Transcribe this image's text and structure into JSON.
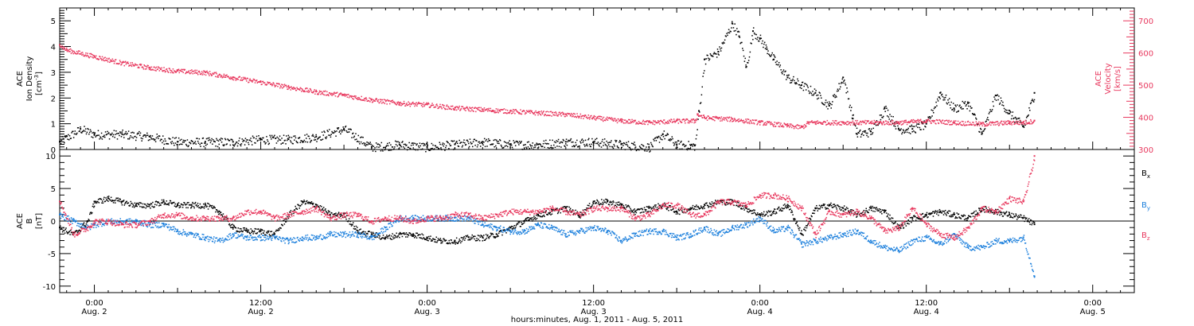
{
  "colors": {
    "black": "#000000",
    "red": "#e8385e",
    "blue": "#1b7fdc"
  },
  "xaxis": {
    "title": "hours:minutes, Aug.  1, 2011 - Aug.  5, 2011",
    "ticks": [
      {
        "time": "0:00",
        "date": "Aug. 2",
        "hours": 24
      },
      {
        "time": "12:00",
        "date": "Aug. 2",
        "hours": 36
      },
      {
        "time": "0:00",
        "date": "Aug. 3",
        "hours": 48
      },
      {
        "time": "12:00",
        "date": "Aug. 3",
        "hours": 60
      },
      {
        "time": "0:00",
        "date": "Aug. 4",
        "hours": 72
      },
      {
        "time": "12:00",
        "date": "Aug. 4",
        "hours": 84
      },
      {
        "time": "0:00",
        "date": "Aug. 5",
        "hours": 96
      }
    ],
    "range_hours": [
      21.5,
      99
    ]
  },
  "panel_top": {
    "left_label_line1": "ACE",
    "left_label_line2": "Ion Density",
    "left_label_line3": "[cm",
    "left_label_sup": "-3",
    "left_label_close": "]",
    "right_label_line1": "ACE",
    "right_label_line2": "Velocity",
    "right_label_line3": "[km/s]",
    "left_ticks": [
      "0",
      "1",
      "2",
      "3",
      "4",
      "5"
    ],
    "right_ticks": [
      "300",
      "400",
      "500",
      "600",
      "700"
    ]
  },
  "panel_bottom": {
    "left_label_line1": "ACE",
    "left_label_line2": "B",
    "left_label_line3": "[nT]",
    "left_ticks": [
      "-10",
      "-5",
      "0",
      "5",
      "10"
    ],
    "legend": [
      {
        "base": "B",
        "sub": "x",
        "color": "#000000"
      },
      {
        "base": "B",
        "sub": "y",
        "color": "#1b7fdc"
      },
      {
        "base": "B",
        "sub": "z",
        "color": "#e8385e"
      }
    ]
  },
  "chart_data": [
    {
      "type": "scatter",
      "x_units": "hours since Aug. 1, 2011 00:00",
      "xlim": [
        21.5,
        99
      ],
      "ylim_left": [
        0,
        5.5
      ],
      "ylim_right": [
        300,
        740
      ],
      "series": [
        {
          "axis": "left",
          "color": "#000000",
          "x": [
            21.5,
            23,
            24,
            26,
            28,
            30,
            32,
            34,
            36,
            38,
            40,
            42,
            44,
            46,
            48,
            50,
            52,
            54,
            56,
            58,
            60,
            62,
            64,
            65,
            66,
            67.3,
            67.6,
            68,
            69,
            70,
            70.5,
            71,
            71.5,
            72,
            72.5,
            73,
            74,
            75,
            76,
            77,
            78,
            78.7,
            79,
            80,
            81,
            82,
            83,
            84,
            85,
            86,
            87,
            88,
            89,
            90,
            91,
            91.8
          ],
          "y": [
            0.3,
            0.8,
            0.6,
            0.6,
            0.5,
            0.3,
            0.3,
            0.3,
            0.4,
            0.4,
            0.5,
            0.8,
            0.1,
            0.2,
            0.1,
            0.2,
            0.3,
            0.2,
            0.2,
            0.3,
            0.3,
            0.2,
            0.1,
            0.6,
            0.2,
            0.15,
            1.5,
            3.5,
            3.8,
            4.9,
            4.4,
            3.2,
            4.6,
            4.3,
            3.9,
            3.5,
            2.8,
            2.5,
            2.2,
            1.7,
            2.8,
            1.2,
            0.6,
            0.7,
            1.6,
            0.8,
            0.8,
            1.0,
            2.2,
            1.6,
            1.8,
            0.6,
            2.1,
            1.4,
            0.9,
            2.2
          ]
        },
        {
          "axis": "right",
          "color": "#e8385e",
          "x": [
            21.5,
            22,
            24,
            26,
            28,
            30,
            32,
            34,
            36,
            38,
            40,
            42,
            44,
            46,
            48,
            50,
            52,
            54,
            56,
            58,
            60,
            62,
            64,
            66,
            67.3,
            67.5,
            68,
            70,
            72,
            74,
            75,
            75.5,
            76,
            78,
            80,
            82,
            84,
            86,
            88,
            90,
            91,
            91.8
          ],
          "y": [
            625,
            610,
            590,
            570,
            555,
            545,
            540,
            525,
            510,
            495,
            480,
            470,
            455,
            445,
            440,
            430,
            425,
            420,
            415,
            410,
            400,
            390,
            385,
            390,
            390,
            410,
            400,
            395,
            385,
            375,
            370,
            385,
            385,
            385,
            385,
            385,
            390,
            385,
            380,
            385,
            385,
            390
          ]
        }
      ]
    },
    {
      "type": "scatter",
      "x_units": "hours since Aug. 1, 2011 00:00",
      "xlim": [
        21.5,
        99
      ],
      "ylim": [
        -11,
        11
      ],
      "series": [
        {
          "name": "Bx",
          "color": "#000000",
          "x": [
            21.5,
            22.5,
            23.5,
            24,
            25,
            26,
            27,
            28,
            29,
            30,
            31,
            32,
            33,
            34,
            35,
            36,
            37,
            38,
            39,
            40,
            41,
            42,
            43,
            44,
            45,
            46,
            47,
            48,
            49,
            50,
            51,
            52,
            53,
            54,
            55,
            56,
            57,
            58,
            59,
            60,
            61,
            62,
            63,
            64,
            65,
            66,
            67,
            68,
            69,
            70,
            71,
            72,
            73,
            74,
            75,
            76,
            77,
            78,
            79,
            80,
            81,
            82,
            83,
            84,
            85,
            86,
            87,
            88,
            89,
            90,
            91,
            91.8
          ],
          "y": [
            -1,
            -2,
            0,
            3,
            3.5,
            3,
            2.5,
            2.5,
            3,
            2.5,
            2.5,
            2.5,
            1.5,
            -1,
            -1.5,
            -1.5,
            -2,
            1,
            3,
            2.5,
            1,
            1,
            -1.5,
            -2,
            -2.5,
            -2,
            -2,
            -2.5,
            -3,
            -3,
            -2.5,
            -2.5,
            -2,
            -1,
            0,
            1,
            1.5,
            2,
            1,
            3,
            3,
            2.5,
            1.5,
            2,
            2.5,
            1.5,
            2,
            2.5,
            3,
            3,
            2,
            1,
            1.5,
            2.5,
            -2,
            2,
            2.5,
            2,
            1,
            2,
            1.5,
            -1,
            0.5,
            1,
            1.5,
            1,
            0.5,
            2,
            1.5,
            1,
            0.5,
            -0.5
          ]
        },
        {
          "name": "By",
          "color": "#1b7fdc",
          "x": [
            21.5,
            22.5,
            23.5,
            24,
            25,
            26,
            27,
            28,
            29,
            30,
            31,
            32,
            33,
            34,
            35,
            36,
            37,
            38,
            39,
            40,
            41,
            42,
            43,
            44,
            45,
            46,
            47,
            48,
            49,
            50,
            51,
            52,
            53,
            54,
            55,
            56,
            57,
            58,
            59,
            60,
            61,
            62,
            63,
            64,
            65,
            66,
            67,
            68,
            69,
            70,
            71,
            72,
            73,
            74,
            75,
            76,
            77,
            78,
            79,
            80,
            81,
            82,
            83,
            84,
            85,
            86,
            87,
            88,
            89,
            90,
            91,
            91.8
          ],
          "y": [
            1,
            0,
            -1,
            -0.5,
            0,
            0,
            0,
            -0.5,
            -0.5,
            -1.5,
            -2,
            -2.5,
            -3,
            -2,
            -2.5,
            -2.5,
            -2.5,
            -3,
            -2.5,
            -2.5,
            -2,
            -2,
            -2,
            -2.5,
            -1,
            0.5,
            0.5,
            0.5,
            0.5,
            0.5,
            0.5,
            -0.5,
            -1,
            -1.5,
            -1.5,
            -0.5,
            -1,
            -2,
            -1.5,
            -1,
            -1.5,
            -3,
            -2,
            -1.5,
            -1.5,
            -2.5,
            -2,
            -1,
            -2,
            -1,
            -0.5,
            0.5,
            -1.5,
            -1,
            -3.5,
            -3,
            -2.5,
            -2,
            -1.5,
            -3,
            -4,
            -4.5,
            -3,
            -2.5,
            -3.5,
            -2,
            -4,
            -4,
            -3,
            -3,
            -2.5,
            -8.5
          ]
        },
        {
          "name": "Bz",
          "color": "#e8385e",
          "x": [
            21.5,
            22.5,
            23.5,
            24,
            25,
            26,
            27,
            28,
            29,
            30,
            31,
            32,
            33,
            34,
            35,
            36,
            37,
            38,
            39,
            40,
            41,
            42,
            43,
            44,
            45,
            46,
            47,
            48,
            49,
            50,
            51,
            52,
            53,
            54,
            55,
            56,
            57,
            58,
            59,
            60,
            61,
            62,
            63,
            64,
            65,
            66,
            67,
            68,
            69,
            70,
            71,
            72,
            73,
            74,
            75,
            76,
            77,
            78,
            79,
            80,
            81,
            82,
            83,
            84,
            85,
            86,
            87,
            88,
            89,
            90,
            91,
            91.8
          ],
          "y": [
            3,
            -2,
            -1,
            0,
            0,
            -0.5,
            -0.5,
            0,
            1,
            1,
            0.5,
            0.5,
            0.5,
            0.5,
            1.5,
            1.5,
            0.5,
            1,
            1.5,
            2,
            0.5,
            1,
            1,
            0,
            0.5,
            0.5,
            0,
            0.5,
            0.5,
            1,
            1,
            0.5,
            1,
            1.5,
            1.5,
            1.5,
            2,
            1.5,
            1,
            2,
            2,
            2,
            0.5,
            1,
            2.5,
            2.5,
            1,
            1,
            3,
            3,
            2.5,
            4,
            4,
            3.5,
            2,
            -2,
            1.5,
            1,
            1.5,
            0.5,
            -1.5,
            -1,
            2,
            -0.5,
            -2,
            -2.5,
            -1,
            2,
            1.5,
            3.5,
            3,
            10
          ]
        }
      ]
    }
  ]
}
